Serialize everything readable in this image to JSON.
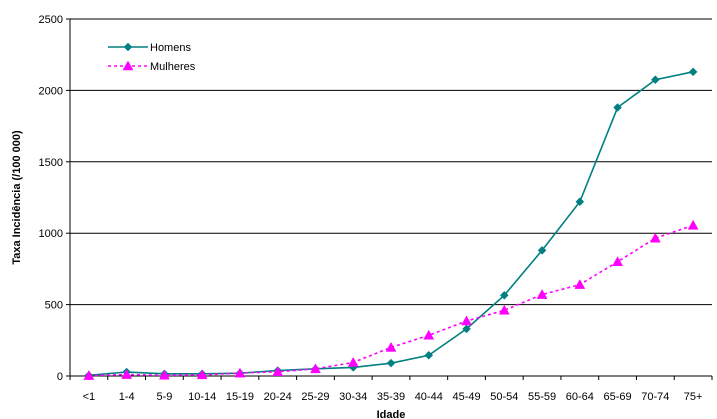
{
  "chart_data": {
    "type": "line",
    "title": "",
    "xlabel": "Idade",
    "ylabel": "Taxa Incidência (/100 000)",
    "categories": [
      "<1",
      "1-4",
      "5-9",
      "10-14",
      "15-19",
      "20-24",
      "25-29",
      "30-34",
      "35-39",
      "40-44",
      "45-49",
      "50-54",
      "55-59",
      "60-64",
      "65-69",
      "70-74",
      "75+"
    ],
    "ylim": [
      0,
      2500
    ],
    "yticks": [
      0,
      500,
      1000,
      1500,
      2000,
      2500
    ],
    "grid": "horizontal",
    "legend_position": "top-left",
    "series": [
      {
        "name": "Homens",
        "color": "#008080",
        "line_style": "solid",
        "marker": "diamond",
        "values": [
          5,
          28,
          15,
          15,
          20,
          38,
          50,
          60,
          90,
          145,
          330,
          565,
          880,
          1220,
          1880,
          2075,
          2130
        ]
      },
      {
        "name": "Mulheres",
        "color": "#FF00FF",
        "line_style": "dotted",
        "marker": "triangle",
        "values": [
          3,
          10,
          5,
          8,
          20,
          30,
          50,
          95,
          200,
          285,
          385,
          460,
          570,
          640,
          800,
          965,
          1055
        ]
      }
    ]
  }
}
